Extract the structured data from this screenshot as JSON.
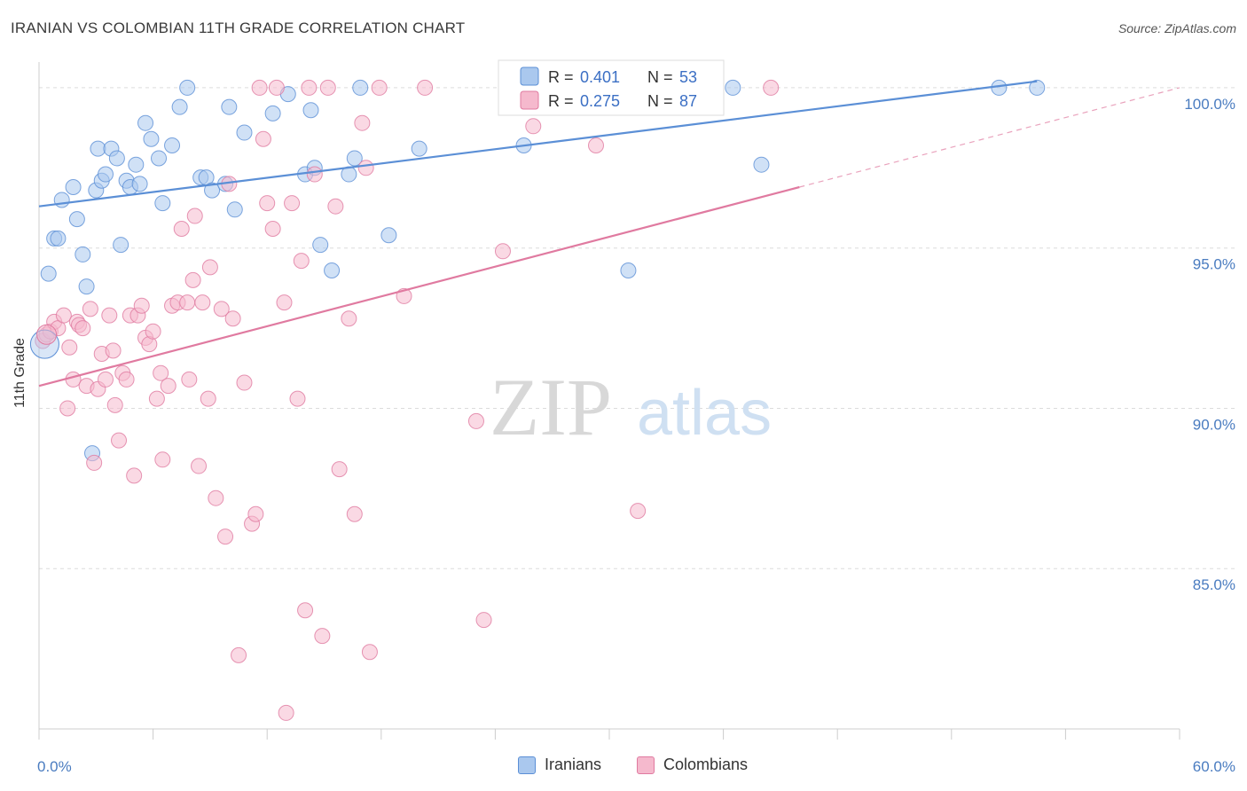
{
  "header": {
    "title": "IRANIAN VS COLOMBIAN 11TH GRADE CORRELATION CHART",
    "source": "Source: ZipAtlas.com"
  },
  "watermark": {
    "zip": "ZIP",
    "atlas": "atlas"
  },
  "chart_data": {
    "type": "scatter",
    "title": "IRANIAN VS COLOMBIAN 11TH GRADE CORRELATION CHART",
    "xlabel": "",
    "ylabel": "11th Grade",
    "xlim": [
      0,
      60
    ],
    "ylim": [
      80.0,
      100.8
    ],
    "x_tick_labels": [
      "0.0%",
      "60.0%"
    ],
    "y_ticks": [
      85,
      90,
      95,
      100
    ],
    "y_tick_labels": [
      "85.0%",
      "90.0%",
      "95.0%",
      "100.0%"
    ],
    "grid": true,
    "legend_position": "top-center",
    "series": [
      {
        "name": "Iranians",
        "color": "#5b8fd6",
        "fill": "#aac8ee",
        "r_label": "R =",
        "r_value": "0.401",
        "n_label": "N =",
        "n_value": "53",
        "trend": {
          "x": [
            0,
            52.5
          ],
          "y": [
            96.3,
            100.2
          ],
          "dashed_to": null
        },
        "points": [
          [
            0.5,
            94.2
          ],
          [
            0.8,
            95.3
          ],
          [
            1.0,
            95.3
          ],
          [
            1.2,
            96.5
          ],
          [
            1.8,
            96.9
          ],
          [
            2.0,
            95.9
          ],
          [
            2.3,
            94.8
          ],
          [
            2.5,
            93.8
          ],
          [
            2.8,
            88.6
          ],
          [
            3.0,
            96.8
          ],
          [
            3.1,
            98.1
          ],
          [
            3.3,
            97.1
          ],
          [
            3.5,
            97.3
          ],
          [
            3.8,
            98.1
          ],
          [
            4.1,
            97.8
          ],
          [
            4.3,
            95.1
          ],
          [
            4.6,
            97.1
          ],
          [
            4.8,
            96.9
          ],
          [
            5.1,
            97.6
          ],
          [
            5.3,
            97.0
          ],
          [
            5.6,
            98.9
          ],
          [
            5.9,
            98.4
          ],
          [
            6.3,
            97.8
          ],
          [
            6.5,
            96.4
          ],
          [
            7.0,
            98.2
          ],
          [
            7.4,
            99.4
          ],
          [
            7.8,
            100.0
          ],
          [
            8.5,
            97.2
          ],
          [
            8.8,
            97.2
          ],
          [
            9.1,
            96.8
          ],
          [
            9.8,
            97.0
          ],
          [
            10.0,
            99.4
          ],
          [
            10.3,
            96.2
          ],
          [
            10.8,
            98.6
          ],
          [
            12.3,
            99.2
          ],
          [
            13.1,
            99.8
          ],
          [
            14.0,
            97.3
          ],
          [
            14.3,
            99.3
          ],
          [
            14.5,
            97.5
          ],
          [
            14.8,
            95.1
          ],
          [
            15.4,
            94.3
          ],
          [
            16.3,
            97.3
          ],
          [
            16.6,
            97.8
          ],
          [
            16.9,
            100.0
          ],
          [
            18.4,
            95.4
          ],
          [
            20.0,
            98.1
          ],
          [
            25.5,
            98.2
          ],
          [
            29.3,
            100.0
          ],
          [
            31.0,
            94.3
          ],
          [
            36.5,
            100.0
          ],
          [
            38.0,
            97.6
          ],
          [
            50.5,
            100.0
          ],
          [
            52.5,
            100.0
          ]
        ]
      },
      {
        "name": "Colombians",
        "color": "#e07aa0",
        "fill": "#f5b9cd",
        "r_label": "R =",
        "r_value": "0.275",
        "n_label": "N =",
        "n_value": "87",
        "trend": {
          "x": [
            0,
            40
          ],
          "y": [
            90.7,
            96.9
          ],
          "dashed_to": [
            60,
            100.0
          ]
        },
        "points": [
          [
            0.2,
            92.1
          ],
          [
            0.4,
            92.3
          ],
          [
            0.6,
            92.4
          ],
          [
            0.8,
            92.7
          ],
          [
            1.0,
            92.5
          ],
          [
            1.3,
            92.9
          ],
          [
            1.5,
            90.0
          ],
          [
            1.6,
            91.9
          ],
          [
            1.8,
            90.9
          ],
          [
            2.0,
            92.7
          ],
          [
            2.1,
            92.6
          ],
          [
            2.3,
            92.5
          ],
          [
            2.5,
            90.7
          ],
          [
            2.7,
            93.1
          ],
          [
            2.9,
            88.3
          ],
          [
            3.1,
            90.6
          ],
          [
            3.3,
            91.7
          ],
          [
            3.5,
            90.9
          ],
          [
            3.7,
            92.9
          ],
          [
            3.9,
            91.8
          ],
          [
            4.0,
            90.1
          ],
          [
            4.2,
            89.0
          ],
          [
            4.4,
            91.1
          ],
          [
            4.6,
            90.9
          ],
          [
            4.8,
            92.9
          ],
          [
            5.0,
            87.9
          ],
          [
            5.2,
            92.9
          ],
          [
            5.4,
            93.2
          ],
          [
            5.6,
            92.2
          ],
          [
            5.8,
            92.0
          ],
          [
            6.0,
            92.4
          ],
          [
            6.2,
            90.3
          ],
          [
            6.4,
            91.1
          ],
          [
            6.5,
            88.4
          ],
          [
            6.8,
            90.7
          ],
          [
            7.0,
            93.2
          ],
          [
            7.3,
            93.3
          ],
          [
            7.5,
            95.6
          ],
          [
            7.8,
            93.3
          ],
          [
            7.9,
            90.9
          ],
          [
            8.1,
            94.0
          ],
          [
            8.2,
            96.0
          ],
          [
            8.4,
            88.2
          ],
          [
            8.6,
            93.3
          ],
          [
            8.9,
            90.3
          ],
          [
            9.0,
            94.4
          ],
          [
            9.3,
            87.2
          ],
          [
            9.6,
            93.1
          ],
          [
            9.8,
            86.0
          ],
          [
            10.0,
            97.0
          ],
          [
            10.2,
            92.8
          ],
          [
            10.5,
            82.3
          ],
          [
            10.8,
            90.8
          ],
          [
            11.2,
            86.4
          ],
          [
            11.4,
            86.7
          ],
          [
            11.6,
            100.0
          ],
          [
            11.8,
            98.4
          ],
          [
            12.0,
            96.4
          ],
          [
            12.3,
            95.6
          ],
          [
            12.5,
            100.0
          ],
          [
            12.9,
            93.3
          ],
          [
            13.0,
            80.5
          ],
          [
            13.3,
            96.4
          ],
          [
            13.6,
            90.3
          ],
          [
            13.8,
            94.6
          ],
          [
            14.0,
            83.7
          ],
          [
            14.2,
            100.0
          ],
          [
            14.5,
            97.3
          ],
          [
            14.9,
            82.9
          ],
          [
            15.2,
            100.0
          ],
          [
            15.6,
            96.3
          ],
          [
            15.8,
            88.1
          ],
          [
            16.3,
            92.8
          ],
          [
            16.6,
            86.7
          ],
          [
            17.0,
            98.9
          ],
          [
            17.2,
            97.5
          ],
          [
            17.4,
            82.4
          ],
          [
            17.9,
            100.0
          ],
          [
            19.2,
            93.5
          ],
          [
            20.3,
            100.0
          ],
          [
            23.0,
            89.6
          ],
          [
            23.4,
            83.4
          ],
          [
            24.4,
            94.9
          ],
          [
            26.0,
            98.8
          ],
          [
            29.3,
            98.2
          ],
          [
            31.5,
            86.8
          ],
          [
            38.5,
            100.0
          ]
        ]
      }
    ]
  }
}
